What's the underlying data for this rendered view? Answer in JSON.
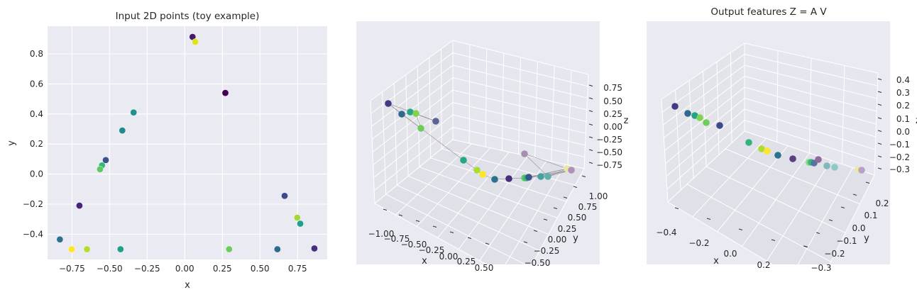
{
  "colors": {
    "background": "#eaeaf2",
    "pane_left": "#e3e3ea",
    "pane_back": "#e6e6ee",
    "pane_floor": "#e0e0e8",
    "grid": "#ffffff",
    "edge": "#808080"
  },
  "chart_data": [
    {
      "type": "scatter",
      "title": "Input 2D points (toy example)",
      "xlabel": "x",
      "ylabel": "y",
      "xlim": [
        -0.912,
        0.947
      ],
      "ylim": [
        -0.568,
        0.984
      ],
      "grid": true,
      "xticks": [
        -0.75,
        -0.5,
        -0.25,
        0.0,
        0.25,
        0.5,
        0.75
      ],
      "xtick_labels": [
        "−0.75",
        "−0.50",
        "−0.25",
        "0.00",
        "0.25",
        "0.50",
        "0.75"
      ],
      "yticks": [
        -0.4,
        -0.2,
        0.0,
        0.2,
        0.4,
        0.6,
        0.8
      ],
      "ytick_labels": [
        "−0.4",
        "−0.2",
        "0.0",
        "0.2",
        "0.4",
        "0.6",
        "0.8"
      ],
      "points": [
        {
          "x": 0.052,
          "y": 0.913,
          "color": "#48186a"
        },
        {
          "x": 0.07,
          "y": 0.88,
          "color": "#dde318"
        },
        {
          "x": 0.27,
          "y": 0.54,
          "color": "#440154"
        },
        {
          "x": -0.34,
          "y": 0.41,
          "color": "#21918c"
        },
        {
          "x": -0.415,
          "y": 0.29,
          "color": "#23898e"
        },
        {
          "x": -0.525,
          "y": 0.093,
          "color": "#3b528b"
        },
        {
          "x": -0.55,
          "y": 0.058,
          "color": "#35b779"
        },
        {
          "x": -0.563,
          "y": 0.032,
          "color": "#5ec962"
        },
        {
          "x": -0.7,
          "y": -0.21,
          "color": "#482677"
        },
        {
          "x": -0.83,
          "y": -0.435,
          "color": "#2c728e"
        },
        {
          "x": -0.752,
          "y": -0.5,
          "color": "#fde725"
        },
        {
          "x": -0.65,
          "y": -0.5,
          "color": "#b5de2b"
        },
        {
          "x": -0.427,
          "y": -0.5,
          "color": "#1fa187"
        },
        {
          "x": 0.295,
          "y": -0.5,
          "color": "#6ccd5a"
        },
        {
          "x": 0.616,
          "y": -0.5,
          "color": "#31688e"
        },
        {
          "x": 0.664,
          "y": -0.145,
          "color": "#3e4989"
        },
        {
          "x": 0.748,
          "y": -0.29,
          "color": "#a0da39"
        },
        {
          "x": 0.768,
          "y": -0.33,
          "color": "#1f9e89"
        },
        {
          "x": 0.862,
          "y": -0.495,
          "color": "#472d7b"
        }
      ]
    },
    {
      "type": "scatter3d",
      "title": "",
      "xlabel": "x",
      "ylabel": "y",
      "zlabel": "z",
      "xtick_labels": [
        "−1.00",
        "−0.75",
        "−0.50",
        "−0.25",
        "0.00",
        "0.25",
        "0.50"
      ],
      "ytick_labels": [
        "1.00",
        "0.75",
        "0.50",
        "0.25",
        "0.00",
        "−0.25",
        "−0.50"
      ],
      "ztick_labels": [
        "0.75",
        "0.50",
        "0.25",
        "0.00",
        "−0.25",
        "−0.50",
        "−0.75"
      ],
      "point_colors": [
        "#443a83",
        "#31688e",
        "#26a58a",
        "#7fd34e",
        "#5a6496",
        "#6ccd5a",
        "#22a884",
        "#addc30",
        "#fde725",
        "#2c728e",
        "#472d7b",
        "#a78fb3",
        "#5ec962",
        "#35b779",
        "#3b528b",
        "#47a0a0",
        "#5eb0a8",
        "#e8e8a0",
        "#b08fb8"
      ],
      "has_connecting_lines": true
    },
    {
      "type": "scatter3d",
      "title": "Output features Z = A V",
      "xlabel": "x",
      "ylabel": "y",
      "zlabel": "z",
      "xtick_labels": [
        "−0.4",
        "−0.2",
        "0.0",
        "0.2"
      ],
      "ytick_labels": [
        "0.2",
        "0.1",
        "0.0",
        "−0.1",
        "−0.2",
        "−0.3"
      ],
      "ztick_labels": [
        "0.4",
        "0.3",
        "0.2",
        "0.1",
        "0.0",
        "−0.1",
        "−0.2",
        "−0.3"
      ],
      "point_colors": [
        "#443a83",
        "#31688e",
        "#20a386",
        "#7fd34e",
        "#6ccd5a",
        "#3e4989",
        "#2fb47c",
        "#addc30",
        "#fde725",
        "#2c728e",
        "#5a3d85",
        "#7fd88a",
        "#35b779",
        "#5575a0",
        "#8e6a9e",
        "#80b8bb",
        "#90c8c8",
        "#e8e8a8",
        "#b8a0c8"
      ]
    }
  ]
}
